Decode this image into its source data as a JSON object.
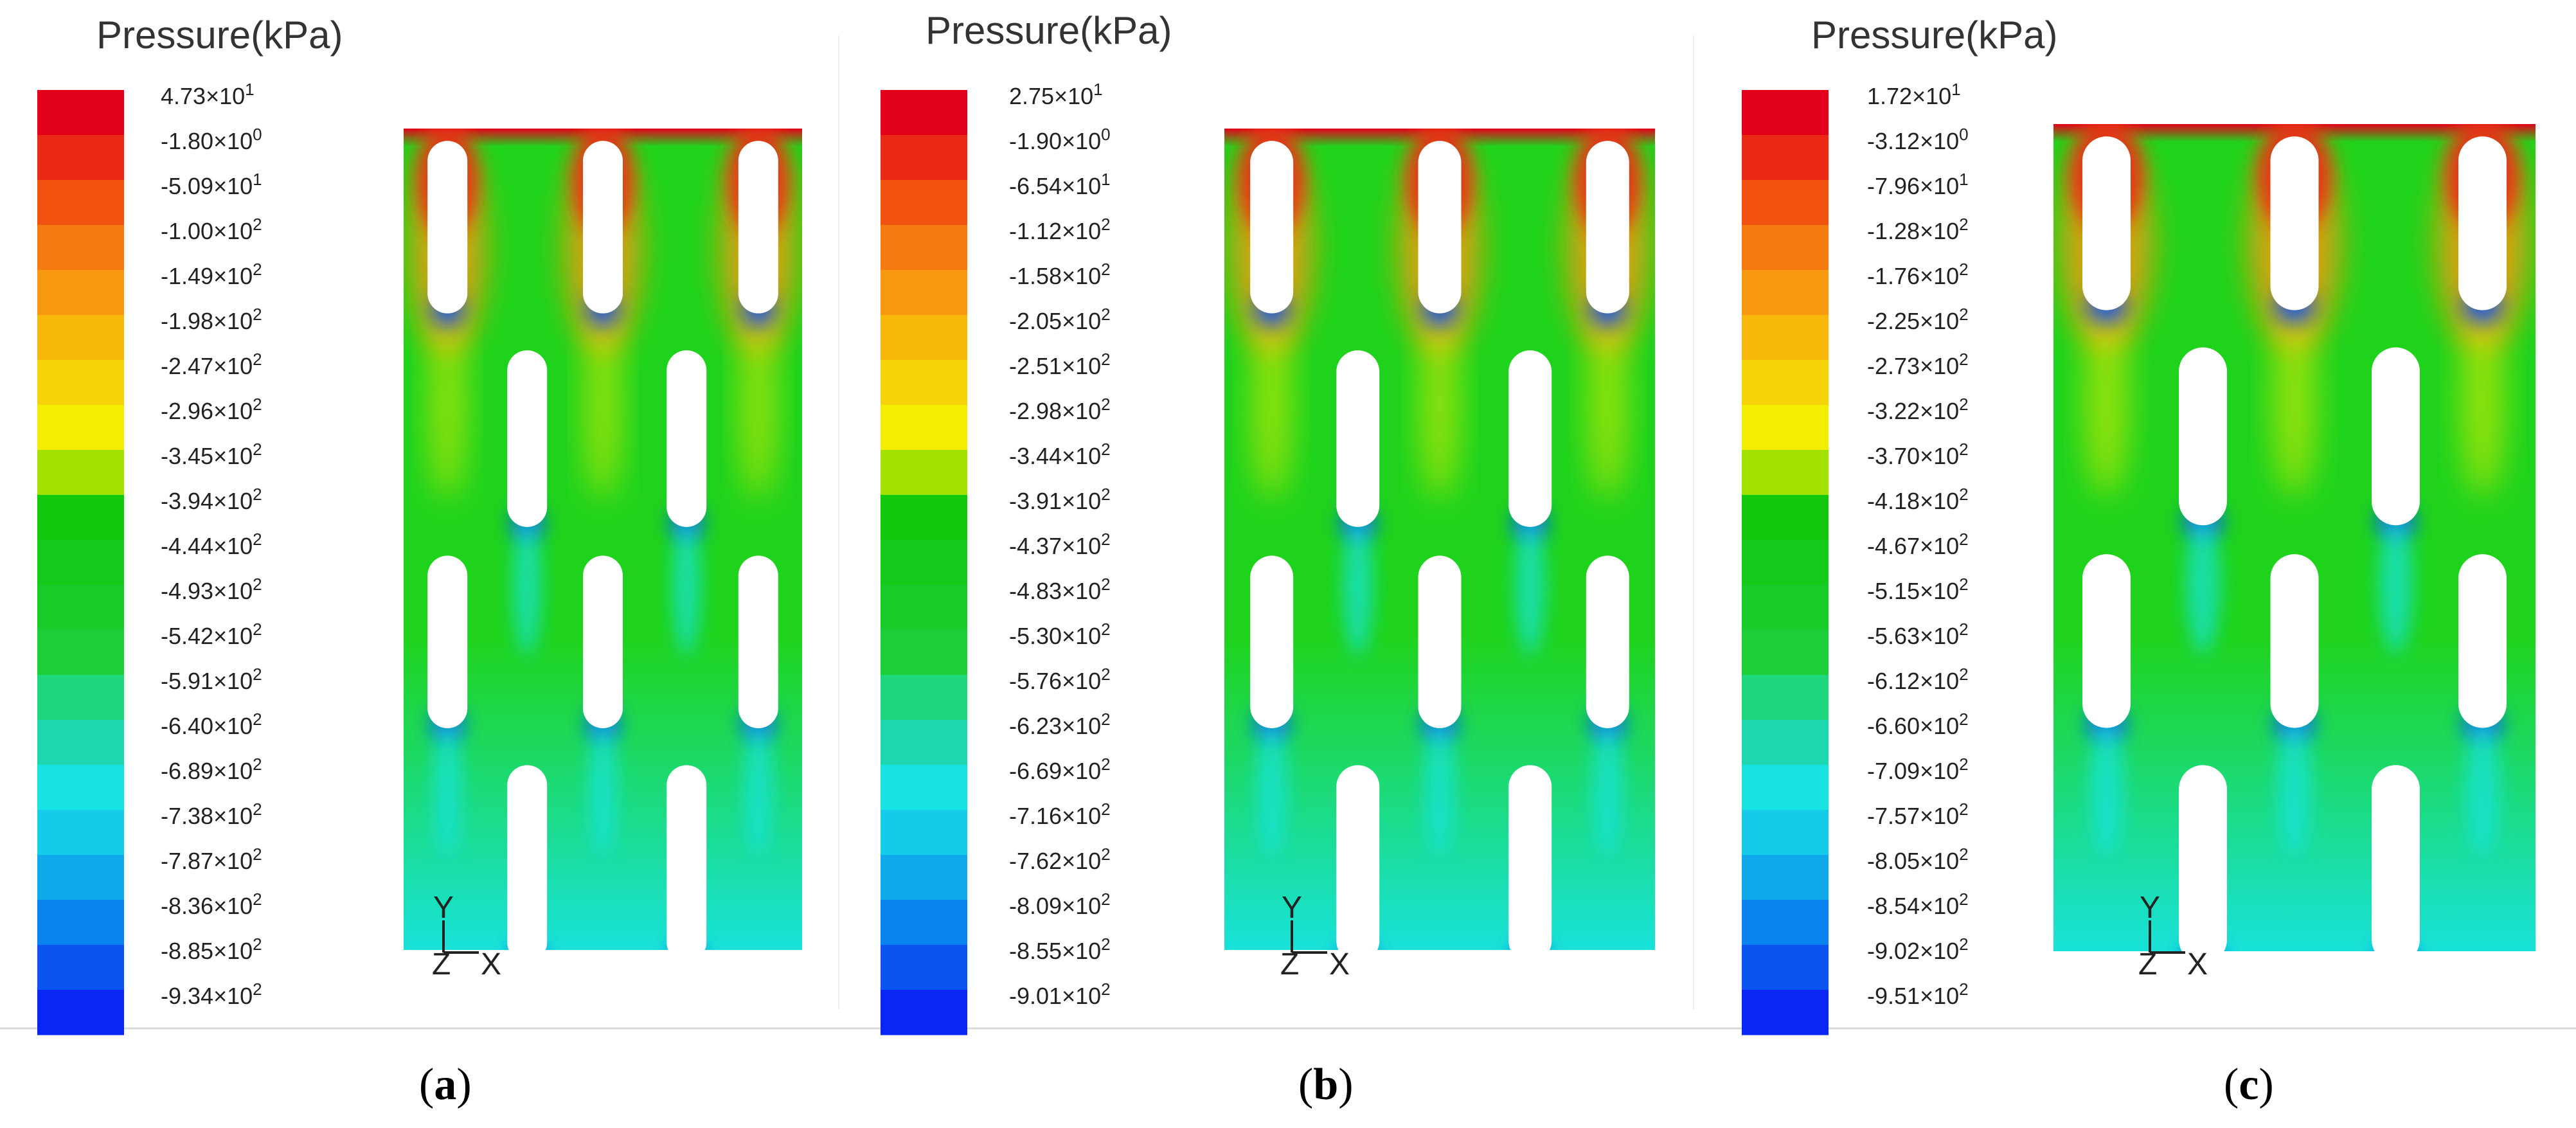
{
  "figure": {
    "caption_labels": [
      "a",
      "b",
      "c"
    ]
  },
  "colors": {
    "scale": [
      "#e3001b",
      "#ea2a14",
      "#f2520f",
      "#f57a0f",
      "#f89a10",
      "#f8b80a",
      "#f6d208",
      "#f3ee00",
      "#a4e200",
      "#12c80d",
      "#14cb1c",
      "#18cd2a",
      "#1ccf39",
      "#1dd77c",
      "#1dd7ae",
      "#18e3e3",
      "#14cbe8",
      "#0fa9ec",
      "#0a83ee",
      "#0a55ef",
      "#0a26f5"
    ],
    "field_base": "#1fd31c",
    "hole": "#ffffff"
  },
  "panels": [
    {
      "id": "a",
      "title": "Pressure(kPa)",
      "ticks": [
        {
          "m": "4.73",
          "e": "1"
        },
        {
          "m": "-1.80",
          "e": "0"
        },
        {
          "m": "-5.09",
          "e": "1"
        },
        {
          "m": "-1.00",
          "e": "2"
        },
        {
          "m": "-1.49",
          "e": "2"
        },
        {
          "m": "-1.98",
          "e": "2"
        },
        {
          "m": "-2.47",
          "e": "2"
        },
        {
          "m": "-2.96",
          "e": "2"
        },
        {
          "m": "-3.45",
          "e": "2"
        },
        {
          "m": "-3.94",
          "e": "2"
        },
        {
          "m": "-4.44",
          "e": "2"
        },
        {
          "m": "-4.93",
          "e": "2"
        },
        {
          "m": "-5.42",
          "e": "2"
        },
        {
          "m": "-5.91",
          "e": "2"
        },
        {
          "m": "-6.40",
          "e": "2"
        },
        {
          "m": "-6.89",
          "e": "2"
        },
        {
          "m": "-7.38",
          "e": "2"
        },
        {
          "m": "-7.87",
          "e": "2"
        },
        {
          "m": "-8.36",
          "e": "2"
        },
        {
          "m": "-8.85",
          "e": "2"
        },
        {
          "m": "-9.34",
          "e": "2"
        }
      ],
      "axis": {
        "y": "Y",
        "z": "Z",
        "x": "X"
      }
    },
    {
      "id": "b",
      "title": "Pressure(kPa)",
      "ticks": [
        {
          "m": "2.75",
          "e": "1"
        },
        {
          "m": "-1.90",
          "e": "0"
        },
        {
          "m": "-6.54",
          "e": "1"
        },
        {
          "m": "-1.12",
          "e": "2"
        },
        {
          "m": "-1.58",
          "e": "2"
        },
        {
          "m": "-2.05",
          "e": "2"
        },
        {
          "m": "-2.51",
          "e": "2"
        },
        {
          "m": "-2.98",
          "e": "2"
        },
        {
          "m": "-3.44",
          "e": "2"
        },
        {
          "m": "-3.91",
          "e": "2"
        },
        {
          "m": "-4.37",
          "e": "2"
        },
        {
          "m": "-4.83",
          "e": "2"
        },
        {
          "m": "-5.30",
          "e": "2"
        },
        {
          "m": "-5.76",
          "e": "2"
        },
        {
          "m": "-6.23",
          "e": "2"
        },
        {
          "m": "-6.69",
          "e": "2"
        },
        {
          "m": "-7.16",
          "e": "2"
        },
        {
          "m": "-7.62",
          "e": "2"
        },
        {
          "m": "-8.09",
          "e": "2"
        },
        {
          "m": "-8.55",
          "e": "2"
        },
        {
          "m": "-9.01",
          "e": "2"
        }
      ],
      "axis": {
        "y": "Y",
        "z": "Z",
        "x": "X"
      }
    },
    {
      "id": "c",
      "title": "Pressure(kPa)",
      "ticks": [
        {
          "m": "1.72",
          "e": "1"
        },
        {
          "m": "-3.12",
          "e": "0"
        },
        {
          "m": "-7.96",
          "e": "1"
        },
        {
          "m": "-1.28",
          "e": "2"
        },
        {
          "m": "-1.76",
          "e": "2"
        },
        {
          "m": "-2.25",
          "e": "2"
        },
        {
          "m": "-2.73",
          "e": "2"
        },
        {
          "m": "-3.22",
          "e": "2"
        },
        {
          "m": "-3.70",
          "e": "2"
        },
        {
          "m": "-4.18",
          "e": "2"
        },
        {
          "m": "-4.67",
          "e": "2"
        },
        {
          "m": "-5.15",
          "e": "2"
        },
        {
          "m": "-5.63",
          "e": "2"
        },
        {
          "m": "-6.12",
          "e": "2"
        },
        {
          "m": "-6.60",
          "e": "2"
        },
        {
          "m": "-7.09",
          "e": "2"
        },
        {
          "m": "-7.57",
          "e": "2"
        },
        {
          "m": "-8.05",
          "e": "2"
        },
        {
          "m": "-8.54",
          "e": "2"
        },
        {
          "m": "-9.02",
          "e": "2"
        },
        {
          "m": "-9.51",
          "e": "2"
        }
      ],
      "axis": {
        "y": "Y",
        "z": "Z",
        "x": "X"
      }
    }
  ]
}
